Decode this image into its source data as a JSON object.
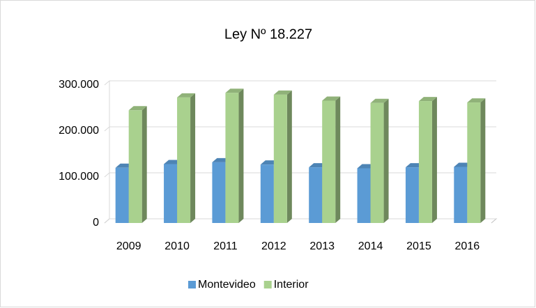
{
  "chart_data": {
    "type": "bar3d",
    "title": "Ley Nº 18.227",
    "categories": [
      "2009",
      "2010",
      "2011",
      "2012",
      "2013",
      "2014",
      "2015",
      "2016"
    ],
    "series": [
      {
        "name": "Montevideo",
        "color": "#5b9bd5",
        "values": [
          120000,
          128000,
          132000,
          127000,
          121000,
          119000,
          121000,
          122000
        ]
      },
      {
        "name": "Interior",
        "color": "#a9d18e",
        "values": [
          245000,
          273000,
          283000,
          279000,
          266000,
          261000,
          265000,
          262000
        ]
      }
    ],
    "ylim": [
      0,
      300000
    ],
    "yticks": [
      0,
      {
        "value": 100000,
        "label": "100.000"
      },
      {
        "value": 200000,
        "label": "200.000"
      },
      {
        "value": 300000,
        "label": "300.000"
      }
    ],
    "grid": true,
    "legend": "bottom"
  }
}
